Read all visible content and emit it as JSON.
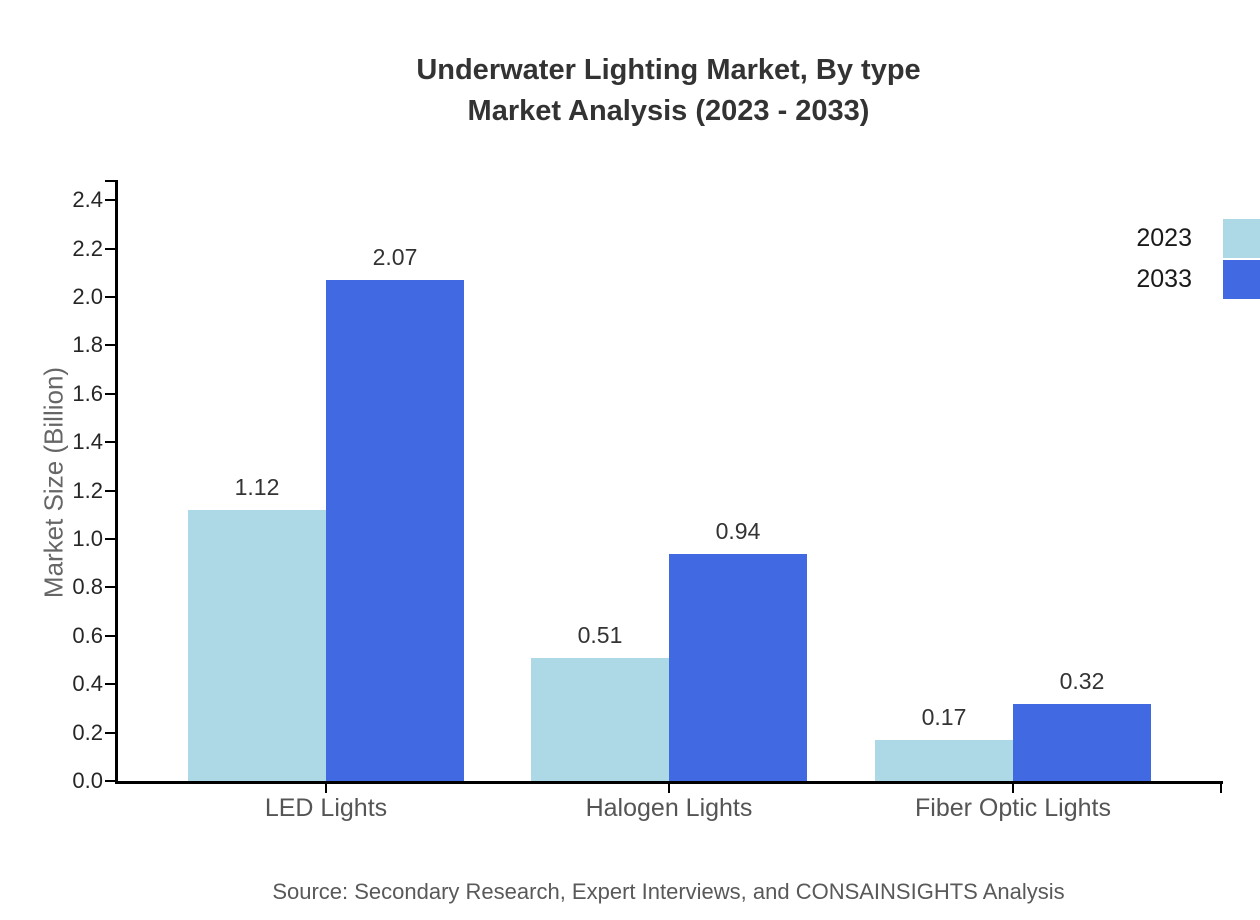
{
  "title": {
    "line1": "Underwater Lighting Market, By type",
    "line2": "Market Analysis (2023 - 2033)"
  },
  "chart_data": {
    "type": "bar",
    "categories": [
      "LED Lights",
      "Halogen Lights",
      "Fiber Optic Lights"
    ],
    "series": [
      {
        "name": "2023",
        "color": "#ADD8E6",
        "values": [
          1.12,
          0.51,
          0.17
        ]
      },
      {
        "name": "2033",
        "color": "#4169E1",
        "values": [
          2.07,
          0.94,
          0.32
        ]
      }
    ],
    "title": "Underwater Lighting Market, By type Market Analysis (2023 - 2033)",
    "xlabel": "",
    "ylabel": "Market Size (Billion)",
    "ylim": [
      0,
      2.4835
    ],
    "yticks": [
      0.0,
      0.2,
      0.4,
      0.6,
      0.8,
      1.0,
      1.2,
      1.4,
      1.6,
      1.8,
      2.0,
      2.2,
      2.4
    ],
    "grid": false,
    "legend_position": "top-right",
    "value_labels": true
  },
  "source": "Source: Secondary Research, Expert Interviews, and CONSAINSIGHTS Analysis",
  "colors": {
    "series_2023": "#ADD8E6",
    "series_2033": "#4169E1",
    "axis": "#000000",
    "title_text": "#333333",
    "tick_text": "#262626",
    "muted_text": "#595959"
  }
}
